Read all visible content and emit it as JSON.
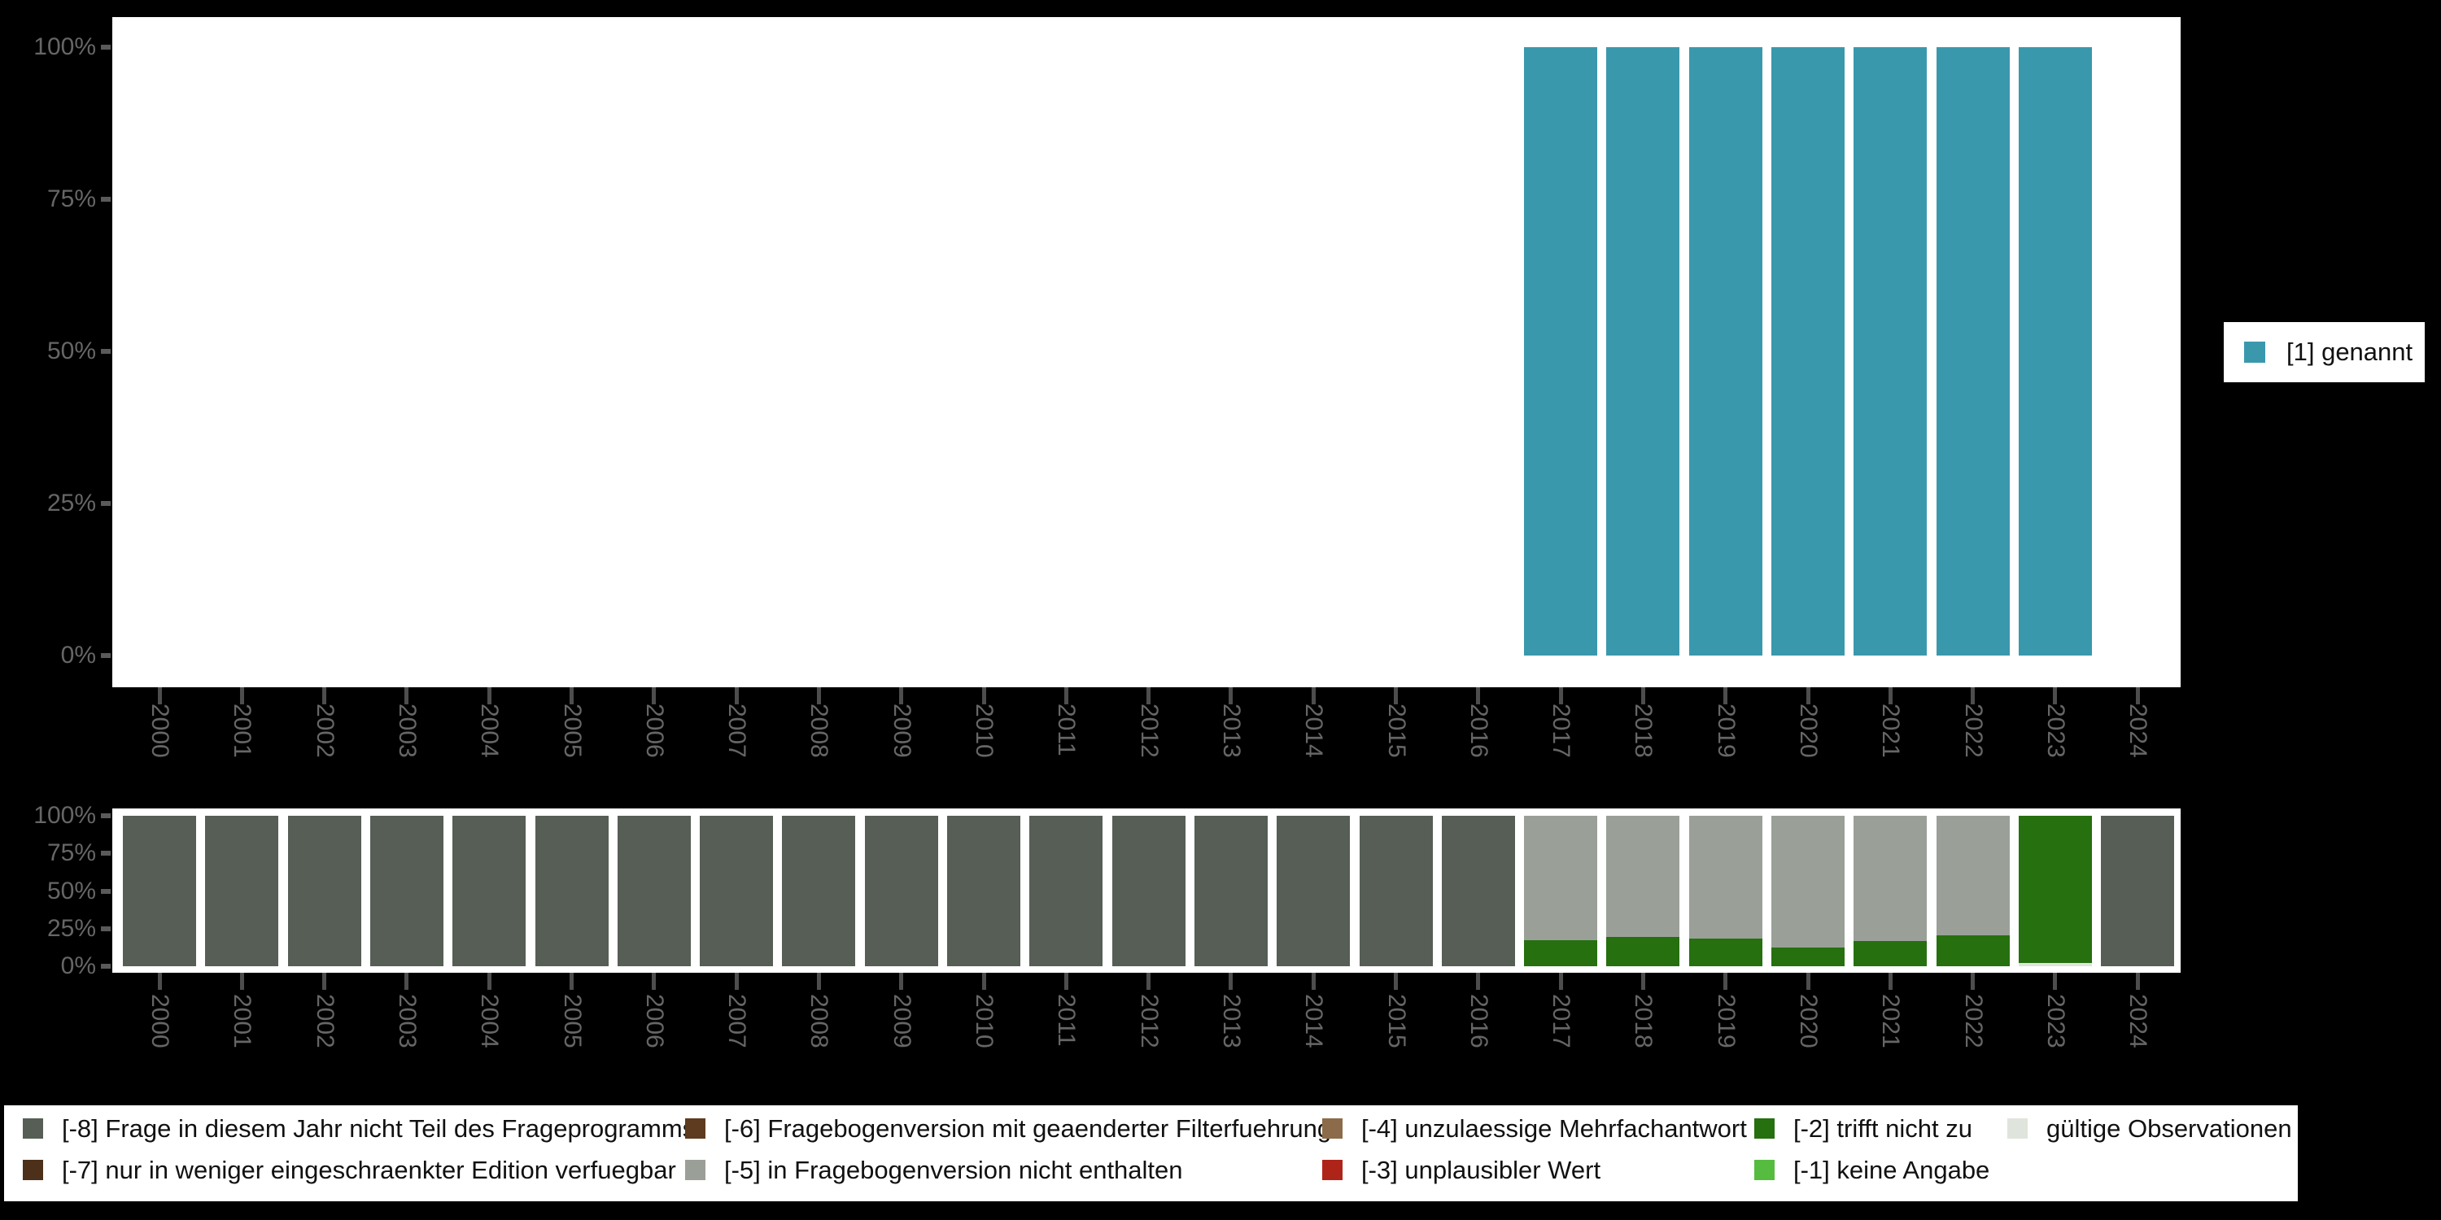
{
  "accent_colors": {
    "counts_bar": "#3a98ad",
    "plot_background": "#ffffff",
    "page_background": "#000000",
    "axis_label": "#666666",
    "axis_tick": "#4d4d4d"
  },
  "chart_data": [
    {
      "type": "bar",
      "title": "",
      "categories": [
        "2000",
        "2001",
        "2002",
        "2003",
        "2004",
        "2005",
        "2006",
        "2007",
        "2008",
        "2009",
        "2010",
        "2011",
        "2012",
        "2013",
        "2014",
        "2015",
        "2016",
        "2017",
        "2018",
        "2019",
        "2020",
        "2021",
        "2022",
        "2023",
        "2024"
      ],
      "series": [
        {
          "name": "[1] genannt",
          "color": "#3a98ad",
          "values": [
            null,
            null,
            null,
            null,
            null,
            null,
            null,
            null,
            null,
            null,
            null,
            null,
            null,
            null,
            null,
            null,
            null,
            100,
            100,
            100,
            100,
            100,
            100,
            100,
            null
          ]
        }
      ],
      "ylim": [
        0,
        100
      ],
      "yticks": [
        100,
        75,
        50,
        25,
        0
      ],
      "ytick_labels": [
        "100%",
        "75%",
        "50%",
        "25%",
        "0%"
      ],
      "grid": false,
      "legend_position": "right"
    },
    {
      "type": "bar",
      "stacked": true,
      "title": "",
      "categories": [
        "2000",
        "2001",
        "2002",
        "2003",
        "2004",
        "2005",
        "2006",
        "2007",
        "2008",
        "2009",
        "2010",
        "2011",
        "2012",
        "2013",
        "2014",
        "2015",
        "2016",
        "2017",
        "2018",
        "2019",
        "2020",
        "2021",
        "2022",
        "2023",
        "2024"
      ],
      "series": [
        {
          "name": "[-8] Frage in diesem Jahr nicht Teil des Frageprogramms",
          "color": "#565e56",
          "values": [
            100,
            100,
            100,
            100,
            100,
            100,
            100,
            100,
            100,
            100,
            100,
            100,
            100,
            100,
            100,
            100,
            100,
            0,
            0,
            0,
            0,
            0,
            0,
            0,
            100
          ]
        },
        {
          "name": "[-7] nur in weniger eingeschraenkter Edition verfuegbar",
          "color": "#4d3019",
          "values": [
            0,
            0,
            0,
            0,
            0,
            0,
            0,
            0,
            0,
            0,
            0,
            0,
            0,
            0,
            0,
            0,
            0,
            0,
            0,
            0,
            0,
            0,
            0,
            0,
            0
          ]
        },
        {
          "name": "[-6] Fragebogenversion mit geaenderter Filterfuehrung",
          "color": "#5e3b1e",
          "values": [
            0,
            0,
            0,
            0,
            0,
            0,
            0,
            0,
            0,
            0,
            0,
            0,
            0,
            0,
            0,
            0,
            0,
            0,
            0,
            0,
            0,
            0,
            0,
            0,
            0
          ]
        },
        {
          "name": "[-5] in Fragebogenversion nicht enthalten",
          "color": "#9aa098",
          "values": [
            0,
            0,
            0,
            0,
            0,
            0,
            0,
            0,
            0,
            0,
            0,
            0,
            0,
            0,
            0,
            0,
            0,
            82.7,
            80.5,
            81.6,
            87.6,
            83.2,
            79.5,
            0,
            0
          ]
        },
        {
          "name": "[-4] unzulaessige Mehrfachantwort",
          "color": "#8b6b49",
          "values": [
            0,
            0,
            0,
            0,
            0,
            0,
            0,
            0,
            0,
            0,
            0,
            0,
            0,
            0,
            0,
            0,
            0,
            0,
            0,
            0,
            0,
            0,
            0,
            0,
            0
          ]
        },
        {
          "name": "[-3] unplausibler Wert",
          "color": "#af2419",
          "values": [
            0,
            0,
            0,
            0,
            0,
            0,
            0,
            0,
            0,
            0,
            0,
            0,
            0,
            0,
            0,
            0,
            0,
            0,
            0,
            0,
            0,
            0,
            0,
            0,
            0
          ]
        },
        {
          "name": "[-2] trifft nicht zu",
          "color": "#26700f",
          "values": [
            0,
            0,
            0,
            0,
            0,
            0,
            0,
            0,
            0,
            0,
            0,
            0,
            0,
            0,
            0,
            0,
            0,
            17.3,
            19.5,
            18.4,
            12.4,
            16.8,
            20.5,
            97.8,
            0
          ]
        },
        {
          "name": "[-1] keine Angabe",
          "color": "#56bc40",
          "values": [
            0,
            0,
            0,
            0,
            0,
            0,
            0,
            0,
            0,
            0,
            0,
            0,
            0,
            0,
            0,
            0,
            0,
            0,
            0,
            0,
            0,
            0,
            0,
            0,
            0
          ]
        },
        {
          "name": "gültige Observationen",
          "color": "#dfe4dc",
          "values": [
            0,
            0,
            0,
            0,
            0,
            0,
            0,
            0,
            0,
            0,
            0,
            0,
            0,
            0,
            0,
            0,
            0,
            0,
            0,
            0,
            0,
            0,
            0,
            2.2,
            0
          ]
        }
      ],
      "ylim": [
        0,
        100
      ],
      "yticks": [
        100,
        75,
        50,
        25,
        0
      ],
      "ytick_labels": [
        "100%",
        "75%",
        "50%",
        "25%",
        "0%"
      ],
      "grid": false,
      "legend_position": "bottom"
    }
  ]
}
